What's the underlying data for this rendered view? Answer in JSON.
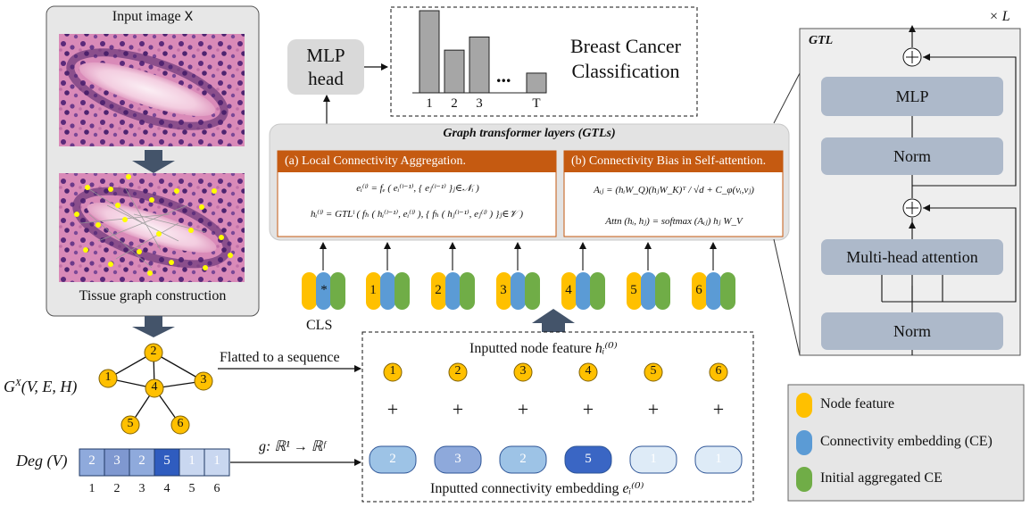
{
  "input_panel": {
    "title": "Input image",
    "title_var": "X",
    "caption": "Tissue graph construction"
  },
  "graph": {
    "label": "G",
    "label_sup": "X",
    "label_args": "(V, E, H)",
    "nodes": [
      "1",
      "2",
      "3",
      "4",
      "5",
      "6"
    ],
    "flatten_label": "Flatted to a sequence"
  },
  "degree": {
    "label": "Deg (V)",
    "values": [
      "2",
      "3",
      "2",
      "5",
      "1",
      "1"
    ],
    "indices": [
      "1",
      "2",
      "3",
      "4",
      "5",
      "6"
    ],
    "mapping_label": "g: ℝ¹ → ℝᶠ"
  },
  "mlp_head": {
    "line1": "MLP",
    "line2": "head"
  },
  "classification": {
    "title_line1": "Breast Cancer",
    "title_line2": "Classification",
    "bar_labels": [
      "1",
      "2",
      "3",
      "T"
    ],
    "bar_values": [
      5,
      2.6,
      3.4,
      1.2
    ],
    "ellipsis": "..."
  },
  "gtls": {
    "title": "Graph transformer layers (GTLs)",
    "panel_a_title": "(a) Local Connectivity Aggregation.",
    "panel_a_formula1": "eᵢ⁽ˡ⁾ = fₑ ( eᵢ⁽ˡ⁻¹⁾, { eⱼ⁽ˡ⁻¹⁾ }ⱼ∈𝒩ᵢ )",
    "panel_a_formula2": "hᵢ⁽ˡ⁾ = GTLˡ ( fₕ ( hᵢ⁽ˡ⁻¹⁾, eᵢ⁽ˡ⁾ ), { fₕ ( hⱼ⁽ˡ⁻¹⁾, eⱼ⁽ˡ⁾ ) }ⱼ∈𝒱 )",
    "panel_b_title": "(b) Connectivity Bias in Self-attention.",
    "panel_b_formula1": "Aᵢⱼ = (hᵢW_Q)(hⱼW_K)ᵀ / √d + C_φ(vᵢ,vⱼ)",
    "panel_b_formula2": "Attn (hᵢ, hⱼ) = softmax (Aᵢⱼ) hⱼ W_V"
  },
  "tokens": {
    "labels": [
      "*",
      "1",
      "2",
      "3",
      "4",
      "5",
      "6"
    ],
    "cls_label": "CLS"
  },
  "sequence_box": {
    "node_feature_label": "Inputted node feature",
    "node_feature_sym": "hᵢ⁽⁰⁾",
    "node_numbers": [
      "1",
      "2",
      "3",
      "4",
      "5",
      "6"
    ],
    "plus": "+",
    "embedding_values": [
      "2",
      "3",
      "2",
      "5",
      "1",
      "1"
    ],
    "embedding_label": "Inputted connectivity embedding",
    "embedding_sym": "eᵢ⁽⁰⁾"
  },
  "gtl_block": {
    "title": "GTL",
    "repeat": "× L",
    "mlp": "MLP",
    "norm_top": "Norm",
    "mha": "Multi-head attention",
    "norm_bottom": "Norm"
  },
  "legend": {
    "node_feature": "Node feature",
    "connectivity_embedding": "Connectivity embedding (CE)",
    "initial_ce": "Initial  aggregated  CE"
  },
  "colors": {
    "node_yellow": "#ffc000",
    "ce_blue": "#5b9bd5",
    "initial_green": "#70ad47",
    "orange_header": "#c55a11",
    "gtl_box": "#adb9ca",
    "arrow_dark": "#44546a"
  }
}
